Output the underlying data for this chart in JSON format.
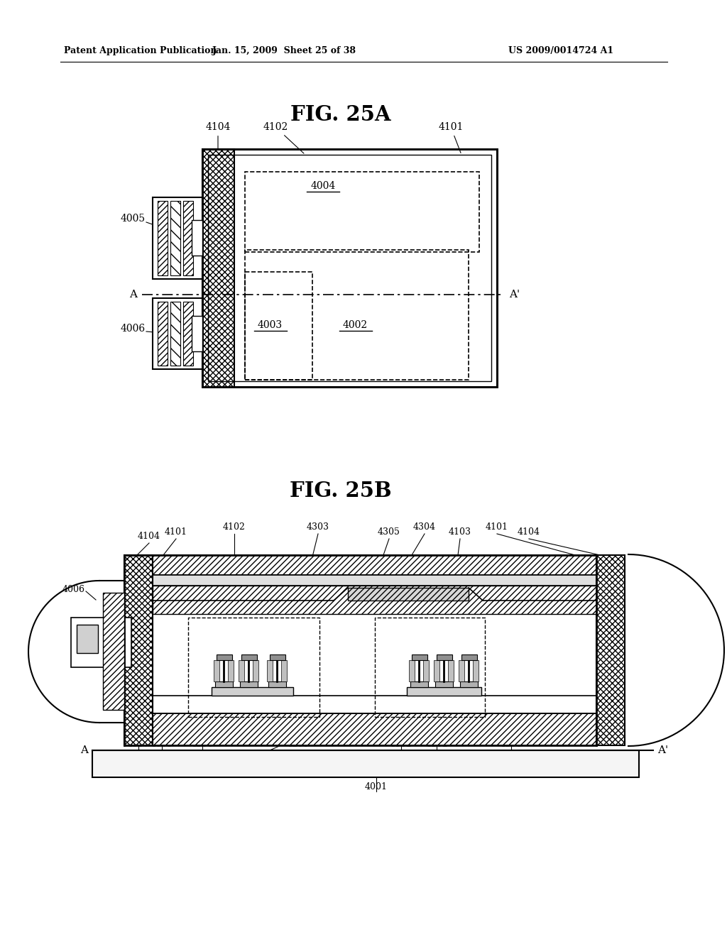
{
  "bg_color": "#ffffff",
  "line_color": "#000000",
  "header_left": "Patent Application Publication",
  "header_mid": "Jan. 15, 2009  Sheet 25 of 38",
  "header_right": "US 2009/0014724 A1",
  "fig_a_title": "FIG. 25A",
  "fig_b_title": "FIG. 25B"
}
